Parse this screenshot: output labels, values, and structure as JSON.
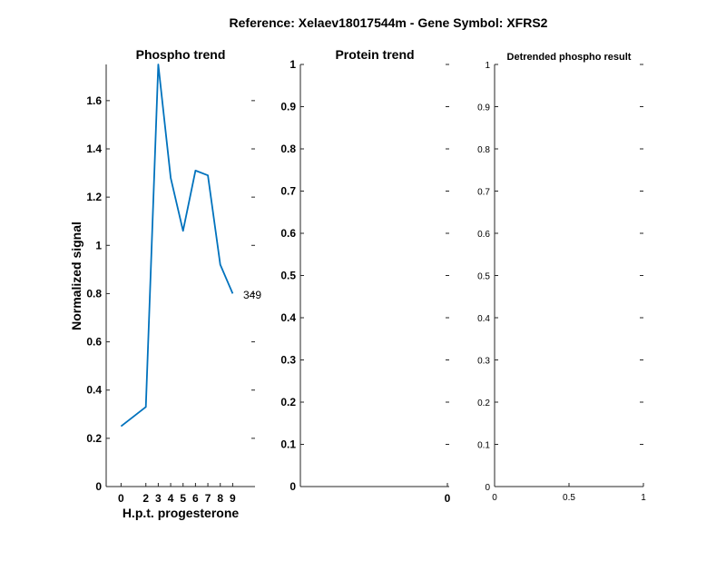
{
  "figure": {
    "title": "Reference:  Xelaev18017544m - Gene Symbol:  XFRS2"
  },
  "chart_data": [
    {
      "type": "line",
      "title": "Phospho trend",
      "xlabel": "H.p.t. progesterone",
      "ylabel": "Normalized signal",
      "x": [
        0,
        2,
        3,
        4,
        5,
        6,
        7,
        8,
        9
      ],
      "x_tick_labels": [
        "0",
        "2",
        "3",
        "4",
        "5",
        "6",
        "7",
        "8",
        "9"
      ],
      "series": [
        {
          "values": [
            0.25,
            0.33,
            1.75,
            1.28,
            1.06,
            1.31,
            1.29,
            0.92,
            0.8
          ],
          "color": "#0072bd"
        }
      ],
      "annotation": "349",
      "ylim": [
        0,
        1.75
      ],
      "y_ticks": [
        "0",
        "0.2",
        "0.4",
        "0.6",
        "0.8",
        "1",
        "1.2",
        "1.4",
        "1.6"
      ],
      "grid": false
    },
    {
      "type": "line",
      "title": "Protein trend",
      "xlabel": "",
      "ylabel": "",
      "series": [],
      "x_tick_labels": [
        "0"
      ],
      "ylim": [
        0,
        1
      ],
      "y_ticks": [
        "0",
        "0.1",
        "0.2",
        "0.3",
        "0.4",
        "0.5",
        "0.6",
        "0.7",
        "0.8",
        "0.9",
        "1"
      ],
      "grid": false
    },
    {
      "type": "line",
      "title": "Detrended phospho result",
      "xlabel": "",
      "ylabel": "",
      "series": [],
      "xlim": [
        0,
        1
      ],
      "x_tick_labels": [
        "0",
        "0.5",
        "1"
      ],
      "ylim": [
        0,
        1
      ],
      "y_ticks": [
        "0",
        "0.1",
        "0.2",
        "0.3",
        "0.4",
        "0.5",
        "0.6",
        "0.7",
        "0.8",
        "0.9",
        "1"
      ],
      "grid": false
    }
  ]
}
